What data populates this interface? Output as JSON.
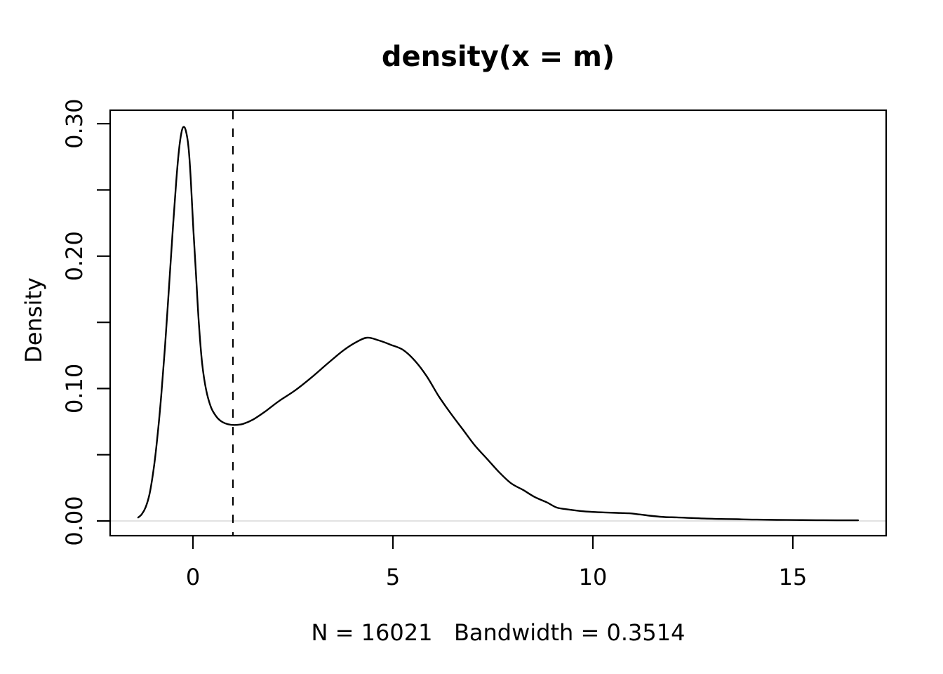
{
  "chart_data": {
    "type": "line",
    "title": "density(x = m)",
    "subtitle": "N = 16021   Bandwidth = 0.3514",
    "n": 16021,
    "bandwidth": 0.3514,
    "xlabel": "",
    "ylabel": "Density",
    "xlim": [
      -2.07,
      17.33
    ],
    "ylim": [
      -0.0117,
      0.3102
    ],
    "grid": false,
    "legend": "none",
    "x_ticks": [
      {
        "v": 0,
        "label": "0"
      },
      {
        "v": 5,
        "label": "5"
      },
      {
        "v": 10,
        "label": "10"
      },
      {
        "v": 15,
        "label": "15"
      }
    ],
    "y_ticks": [
      {
        "v": 0.0,
        "label": "0.00"
      },
      {
        "v": 0.05,
        "label": ""
      },
      {
        "v": 0.1,
        "label": "0.10"
      },
      {
        "v": 0.15,
        "label": ""
      },
      {
        "v": 0.2,
        "label": "0.20"
      },
      {
        "v": 0.25,
        "label": ""
      },
      {
        "v": 0.3,
        "label": "0.30"
      }
    ],
    "vline": {
      "x": 1.0,
      "style": "dashed",
      "color": "#000000"
    },
    "zero_line": {
      "y": 0.0,
      "color": "#d9d9d9"
    },
    "colors": {
      "curve": "#000000",
      "axis": "#000000",
      "background": "#ffffff"
    },
    "curve": [
      [
        -1.37,
        0.0026
      ],
      [
        -1.28,
        0.005
      ],
      [
        -1.18,
        0.0105
      ],
      [
        -1.08,
        0.021
      ],
      [
        -0.97,
        0.042
      ],
      [
        -0.88,
        0.066
      ],
      [
        -0.79,
        0.096
      ],
      [
        -0.7,
        0.131
      ],
      [
        -0.6,
        0.176
      ],
      [
        -0.5,
        0.222
      ],
      [
        -0.42,
        0.256
      ],
      [
        -0.35,
        0.28
      ],
      [
        -0.29,
        0.293
      ],
      [
        -0.24,
        0.2975
      ],
      [
        -0.18,
        0.295
      ],
      [
        -0.11,
        0.282
      ],
      [
        -0.05,
        0.256
      ],
      [
        0.01,
        0.22
      ],
      [
        0.08,
        0.184
      ],
      [
        0.15,
        0.148
      ],
      [
        0.23,
        0.119
      ],
      [
        0.33,
        0.099
      ],
      [
        0.45,
        0.086
      ],
      [
        0.58,
        0.079
      ],
      [
        0.72,
        0.075
      ],
      [
        0.88,
        0.073
      ],
      [
        1.05,
        0.0725
      ],
      [
        1.25,
        0.0733
      ],
      [
        1.5,
        0.0765
      ],
      [
        1.8,
        0.0825
      ],
      [
        2.15,
        0.0905
      ],
      [
        2.55,
        0.0985
      ],
      [
        2.95,
        0.108
      ],
      [
        3.35,
        0.1185
      ],
      [
        3.75,
        0.1285
      ],
      [
        4.05,
        0.1345
      ],
      [
        4.35,
        0.1384
      ],
      [
        4.65,
        0.1363
      ],
      [
        4.95,
        0.133
      ],
      [
        5.25,
        0.1292
      ],
      [
        5.55,
        0.121
      ],
      [
        5.85,
        0.109
      ],
      [
        6.15,
        0.094
      ],
      [
        6.45,
        0.081
      ],
      [
        6.75,
        0.069
      ],
      [
        7.05,
        0.057
      ],
      [
        7.35,
        0.047
      ],
      [
        7.65,
        0.037
      ],
      [
        7.95,
        0.0285
      ],
      [
        8.25,
        0.0235
      ],
      [
        8.55,
        0.018
      ],
      [
        8.85,
        0.014
      ],
      [
        9.1,
        0.0101
      ],
      [
        9.4,
        0.0086
      ],
      [
        9.7,
        0.0075
      ],
      [
        10.0,
        0.0068
      ],
      [
        10.3,
        0.0064
      ],
      [
        10.6,
        0.0061
      ],
      [
        10.9,
        0.0058
      ],
      [
        11.2,
        0.0048
      ],
      [
        11.5,
        0.0037
      ],
      [
        11.8,
        0.0029
      ],
      [
        12.1,
        0.0027
      ],
      [
        12.4,
        0.0023
      ],
      [
        12.8,
        0.0018
      ],
      [
        13.2,
        0.0015
      ],
      [
        13.6,
        0.0013
      ],
      [
        14.1,
        0.001
      ],
      [
        14.6,
        0.0008
      ],
      [
        15.1,
        0.0007
      ],
      [
        15.6,
        0.0006
      ],
      [
        16.1,
        0.0005
      ],
      [
        16.63,
        0.0005
      ]
    ]
  }
}
